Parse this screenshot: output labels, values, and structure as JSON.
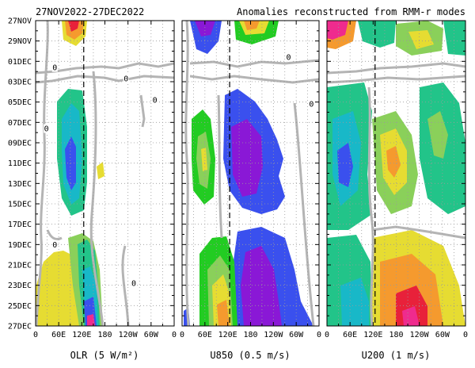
{
  "header": {
    "date_range": "27NOV2022-27DEC2022",
    "description": "Anomalies reconstructed from RMM-r modes"
  },
  "chart_data": [
    {
      "type": "heatmap",
      "panel": "olr",
      "xlabel": "OLR (5 W/m²)",
      "x_ticks": [
        "0",
        "60E",
        "120E",
        "180",
        "120W",
        "60W",
        "0"
      ],
      "x_lon_range": [
        0,
        360
      ],
      "y_ticks": [
        "27NOV",
        "29NOV",
        "01DEC",
        "03DEC",
        "05DEC",
        "07DEC",
        "09DEC",
        "11DEC",
        "13DEC",
        "15DEC",
        "17DEC",
        "19DEC",
        "21DEC",
        "23DEC",
        "25DEC",
        "27DEC"
      ],
      "y_day_range": [
        0,
        30
      ],
      "reference_line_lon": 125,
      "zero_labels": [
        {
          "text": "0",
          "lon": 50,
          "day": 4.6
        },
        {
          "text": "0",
          "lon": 235,
          "day": 5.7
        },
        {
          "text": "0",
          "lon": 310,
          "day": 7.8
        },
        {
          "text": "0",
          "lon": 28,
          "day": 10.6
        },
        {
          "text": "0",
          "lon": 50,
          "day": 22.0
        },
        {
          "text": "0",
          "lon": 255,
          "day": 25.8
        }
      ]
    },
    {
      "type": "heatmap",
      "panel": "u850",
      "xlabel": "U850 (0.5 m/s)",
      "x_ticks": [
        "0",
        "60E",
        "120E",
        "180",
        "120W",
        "60W",
        "0"
      ],
      "x_lon_range": [
        0,
        360
      ],
      "y_day_range": [
        0,
        30
      ],
      "reference_line_lon": 125,
      "zero_labels": [
        {
          "text": "0",
          "lon": 280,
          "day": 3.6
        },
        {
          "text": "0",
          "lon": 340,
          "day": 8.2
        }
      ]
    },
    {
      "type": "heatmap",
      "panel": "u200",
      "xlabel": "U200 (1 m/s)",
      "x_ticks": [
        "0",
        "60E",
        "120E",
        "180",
        "120W",
        "60W",
        "0"
      ],
      "x_lon_range": [
        0,
        360
      ],
      "y_day_range": [
        0,
        30
      ],
      "reference_line_lon": 125,
      "zero_labels": []
    }
  ],
  "colors": {
    "red": "#e8213a",
    "magenta": "#ef2b8e",
    "orange": "#f59a2e",
    "yellow": "#e6dc32",
    "lightgreen": "#8ad05a",
    "green": "#22cc22",
    "teal": "#22c489",
    "cyan": "#18b8c8",
    "blue": "#3a50ee",
    "violet": "#8a18d6",
    "contour": "#b4b4b4"
  }
}
